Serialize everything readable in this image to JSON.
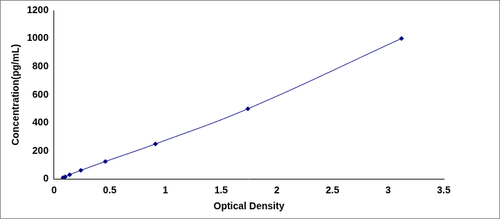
{
  "chart_data": {
    "type": "scatter",
    "x_label": "Optical Density",
    "y_label": "Concentration(pg/mL)",
    "x": [
      0.08,
      0.1,
      0.14,
      0.24,
      0.46,
      0.91,
      1.74,
      3.12
    ],
    "values": [
      10,
      16,
      31,
      62,
      125,
      250,
      500,
      1000
    ],
    "color": "#000080",
    "marker": "diamond",
    "line_style": "solid",
    "xlim": [
      0,
      3.5
    ],
    "xticks": [
      0,
      0.5,
      1,
      1.5,
      2,
      2.5,
      3,
      3.5
    ],
    "ylim": [
      0,
      1200
    ],
    "yticks": [
      0,
      200,
      400,
      600,
      800,
      1000,
      1200
    ],
    "grid": false
  }
}
